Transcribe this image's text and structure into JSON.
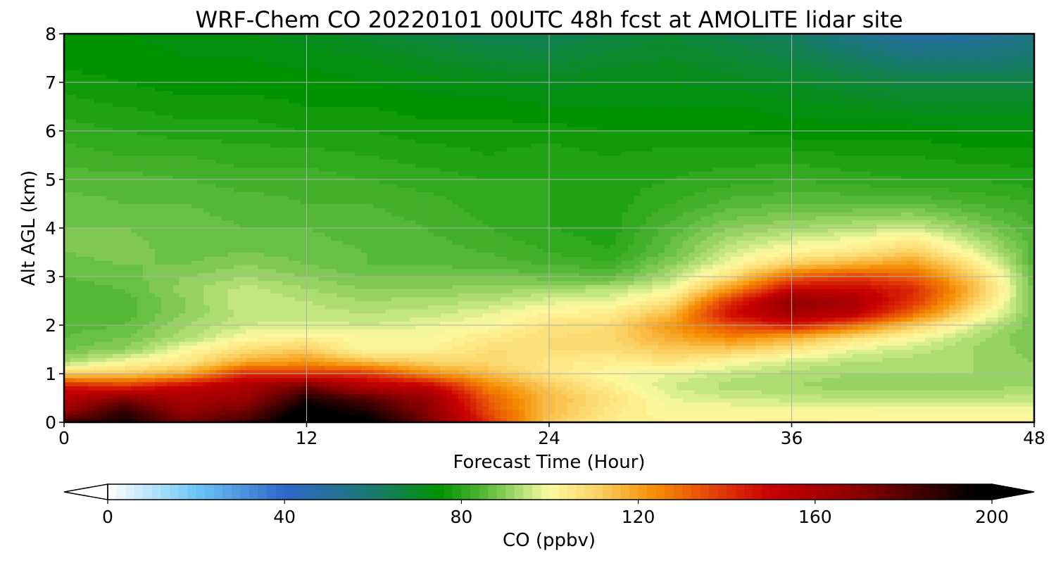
{
  "chart_data": {
    "type": "heatmap",
    "title": "WRF-Chem CO  20220101 00UTC 48h fcst at AMOLITE lidar site",
    "xlabel": "Forecast Time (Hour)",
    "ylabel": "Alt AGL (km)",
    "xlim": [
      0,
      48
    ],
    "ylim": [
      0,
      8
    ],
    "x_ticks": [
      "0",
      "12",
      "24",
      "36",
      "48"
    ],
    "y_ticks": [
      "0",
      "1",
      "2",
      "3",
      "4",
      "5",
      "6",
      "7",
      "8"
    ],
    "grid": true,
    "colorbar": {
      "label": "CO  (ppbv)",
      "range": [
        0,
        200
      ],
      "ticks": [
        "0",
        "40",
        "80",
        "120",
        "160",
        "200"
      ],
      "extend": "both",
      "levels": 100,
      "colormap_stops": [
        {
          "value": 0,
          "color": "#ffffff"
        },
        {
          "value": 20,
          "color": "#6cc6f5"
        },
        {
          "value": 40,
          "color": "#2f67c9"
        },
        {
          "value": 60,
          "color": "#1a7a70"
        },
        {
          "value": 75,
          "color": "#009300"
        },
        {
          "value": 86,
          "color": "#5cbb3c"
        },
        {
          "value": 96,
          "color": "#d0eb88"
        },
        {
          "value": 100,
          "color": "#fefaa0"
        },
        {
          "value": 110,
          "color": "#fbd56a"
        },
        {
          "value": 124,
          "color": "#f58c00"
        },
        {
          "value": 138,
          "color": "#e23c08"
        },
        {
          "value": 150,
          "color": "#c80000"
        },
        {
          "value": 170,
          "color": "#8a0000"
        },
        {
          "value": 185,
          "color": "#3d0000"
        },
        {
          "value": 196,
          "color": "#000000"
        }
      ]
    },
    "x": [
      0,
      3,
      6,
      9,
      12,
      15,
      18,
      21,
      24,
      27,
      30,
      33,
      36,
      39,
      42,
      45,
      48
    ],
    "y": [
      0,
      0.25,
      0.5,
      0.75,
      1,
      1.25,
      1.5,
      1.75,
      2,
      2.25,
      2.5,
      2.75,
      3,
      3.25,
      3.5,
      4,
      4.5,
      5,
      5.5,
      6,
      6.5,
      7,
      7.5,
      8
    ],
    "z": [
      [
        185,
        192,
        175,
        185,
        205,
        200,
        175,
        140,
        112,
        104,
        102,
        102,
        103,
        102,
        102,
        102,
        102
      ],
      [
        165,
        188,
        165,
        175,
        200,
        190,
        170,
        135,
        115,
        105,
        100,
        100,
        100,
        100,
        99,
        99,
        99
      ],
      [
        155,
        170,
        160,
        165,
        190,
        180,
        165,
        132,
        115,
        107,
        98,
        96,
        95,
        94,
        94,
        94,
        95
      ],
      [
        145,
        140,
        150,
        160,
        175,
        155,
        152,
        125,
        112,
        103,
        96,
        93,
        92,
        91,
        91,
        91,
        92
      ],
      [
        112,
        112,
        118,
        142,
        140,
        140,
        124,
        115,
        106,
        100,
        98,
        95,
        93,
        92,
        92,
        92,
        91
      ],
      [
        92,
        100,
        105,
        118,
        122,
        115,
        110,
        109,
        105,
        103,
        106,
        100,
        96,
        94,
        93,
        92,
        90
      ],
      [
        88,
        90,
        100,
        108,
        112,
        100,
        102,
        108,
        108,
        108,
        112,
        112,
        106,
        98,
        95,
        92,
        89
      ],
      [
        86,
        88,
        93,
        100,
        103,
        100,
        100,
        104,
        108,
        109,
        118,
        125,
        118,
        108,
        100,
        93,
        88
      ],
      [
        85,
        86,
        92,
        96,
        97,
        96,
        98,
        100,
        106,
        108,
        122,
        135,
        145,
        130,
        112,
        97,
        88
      ],
      [
        84,
        85,
        90,
        95,
        95,
        94,
        95,
        98,
        102,
        104,
        115,
        148,
        162,
        155,
        130,
        105,
        88
      ],
      [
        84,
        85,
        90,
        96,
        94,
        92,
        93,
        94,
        97,
        98,
        106,
        140,
        168,
        160,
        140,
        112,
        87
      ],
      [
        85,
        86,
        91,
        95,
        92,
        90,
        90,
        91,
        92,
        94,
        98,
        122,
        150,
        150,
        142,
        115,
        87
      ],
      [
        86,
        87,
        90,
        92,
        90,
        88,
        88,
        88,
        87,
        86,
        93,
        108,
        132,
        138,
        132,
        112,
        86
      ],
      [
        87,
        88,
        88,
        90,
        88,
        86,
        86,
        85,
        84,
        83,
        90,
        100,
        112,
        118,
        122,
        106,
        85
      ],
      [
        88,
        89,
        87,
        88,
        87,
        86,
        85,
        84,
        82,
        80,
        87,
        96,
        102,
        105,
        112,
        98,
        85
      ],
      [
        88,
        88,
        87,
        86,
        86,
        85,
        84,
        82,
        80,
        79,
        85,
        90,
        92,
        94,
        96,
        90,
        84
      ],
      [
        87,
        86,
        86,
        85,
        84,
        84,
        83,
        81,
        80,
        79,
        82,
        85,
        86,
        86,
        86,
        84,
        82
      ],
      [
        85,
        85,
        84,
        83,
        83,
        82,
        81,
        80,
        80,
        79,
        80,
        81,
        82,
        81,
        80,
        80,
        79
      ],
      [
        83,
        82,
        82,
        81,
        81,
        80,
        79,
        78,
        79,
        78,
        79,
        79,
        79,
        78,
        78,
        77,
        77
      ],
      [
        81,
        80,
        79,
        79,
        78,
        78,
        77,
        77,
        77,
        76,
        76,
        76,
        75,
        75,
        75,
        74,
        74
      ],
      [
        79,
        78,
        77,
        77,
        76,
        76,
        75,
        75,
        74,
        74,
        74,
        74,
        73,
        72,
        71,
        71,
        71
      ],
      [
        77,
        76,
        75,
        75,
        75,
        74,
        73,
        72,
        71,
        72,
        72,
        71,
        70,
        68,
        66,
        66,
        66
      ],
      [
        75,
        75,
        74,
        74,
        73,
        72,
        70,
        68,
        67,
        69,
        70,
        68,
        66,
        62,
        58,
        58,
        60
      ],
      [
        74,
        74,
        73,
        72,
        71,
        69,
        66,
        64,
        64,
        66,
        68,
        65,
        62,
        55,
        48,
        50,
        55
      ]
    ]
  }
}
